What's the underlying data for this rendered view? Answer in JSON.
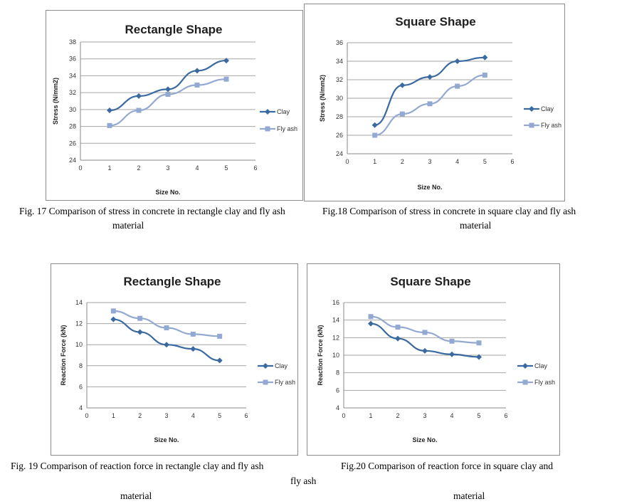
{
  "captions": {
    "fig17": {
      "line1": "Fig. 17 Comparison of stress in concrete in rectangle clay and fly ash",
      "line2": "material"
    },
    "fig18": {
      "line1": "Fig.18 Comparison of stress in concrete in square clay and fly ash",
      "line2": "material"
    },
    "fig19": {
      "line1": "Fig. 19 Comparison of reaction force in rectangle clay and fly ash",
      "line2": "fly ash",
      "line3": "material"
    },
    "fig20": {
      "line1": "Fig.20   Comparison of  reaction force in square clay and",
      "line3": "material"
    }
  },
  "colors": {
    "clay": "#3b6aa0",
    "flyash": "#94a9d2",
    "grid": "#a6a6a6",
    "axis": "#888888"
  },
  "chart_data": [
    {
      "type": "line",
      "title": "Rectangle Shape",
      "xlabel": "Size No.",
      "ylabel": "Stress (N/mm2)",
      "xlim": [
        0,
        6
      ],
      "ylim": [
        24,
        38
      ],
      "xticks": [
        0,
        1,
        2,
        3,
        4,
        5,
        6
      ],
      "yticks": [
        24,
        26,
        28,
        30,
        32,
        34,
        36,
        38
      ],
      "grid": true,
      "legend": "right",
      "x": [
        1,
        2,
        3,
        4,
        5
      ],
      "series": [
        {
          "name": "Clay",
          "values": [
            29.9,
            31.6,
            32.4,
            34.6,
            35.8
          ],
          "marker": "diamond"
        },
        {
          "name": "Fly ash",
          "values": [
            28.1,
            29.9,
            31.8,
            32.9,
            33.6
          ],
          "marker": "square"
        }
      ]
    },
    {
      "type": "line",
      "title": "Square Shape",
      "xlabel": "Size No.",
      "ylabel": "Stress (N/mm2)",
      "xlim": [
        0,
        6
      ],
      "ylim": [
        24,
        36
      ],
      "xticks": [
        0,
        1,
        2,
        3,
        4,
        5,
        6
      ],
      "yticks": [
        24,
        26,
        28,
        30,
        32,
        34,
        36
      ],
      "grid": true,
      "legend": "right",
      "x": [
        1,
        2,
        3,
        4,
        5
      ],
      "series": [
        {
          "name": "Clay",
          "values": [
            27.1,
            31.4,
            32.3,
            34.0,
            34.4
          ],
          "marker": "diamond"
        },
        {
          "name": "Fly ash",
          "values": [
            26.0,
            28.3,
            29.4,
            31.3,
            32.5
          ],
          "marker": "square"
        }
      ]
    },
    {
      "type": "line",
      "title": "Rectangle Shape",
      "xlabel": "Size No.",
      "ylabel": "Reaction Force (kN)",
      "xlim": [
        0,
        6
      ],
      "ylim": [
        4,
        14
      ],
      "xticks": [
        0,
        1,
        2,
        3,
        4,
        5,
        6
      ],
      "yticks": [
        4,
        6,
        8,
        10,
        12,
        14
      ],
      "grid": true,
      "legend": "right",
      "x": [
        1,
        2,
        3,
        4,
        5
      ],
      "series": [
        {
          "name": "Clay",
          "values": [
            12.4,
            11.2,
            10.0,
            9.6,
            8.5
          ],
          "marker": "diamond"
        },
        {
          "name": "Fly ash",
          "values": [
            13.2,
            12.5,
            11.6,
            11.0,
            10.8
          ],
          "marker": "square"
        }
      ]
    },
    {
      "type": "line",
      "title": "Square Shape",
      "xlabel": "Size No.",
      "ylabel": "Reaction Force (kN)",
      "xlim": [
        0,
        6
      ],
      "ylim": [
        4,
        16
      ],
      "xticks": [
        0,
        1,
        2,
        3,
        4,
        5,
        6
      ],
      "yticks": [
        4,
        6,
        8,
        10,
        12,
        14,
        16
      ],
      "grid": true,
      "legend": "right",
      "x": [
        1,
        2,
        3,
        4,
        5
      ],
      "series": [
        {
          "name": "Clay",
          "values": [
            13.6,
            11.9,
            10.5,
            10.1,
            9.8
          ],
          "marker": "diamond"
        },
        {
          "name": "Fly ash",
          "values": [
            14.4,
            13.2,
            12.6,
            11.6,
            11.4
          ],
          "marker": "square"
        }
      ]
    }
  ]
}
